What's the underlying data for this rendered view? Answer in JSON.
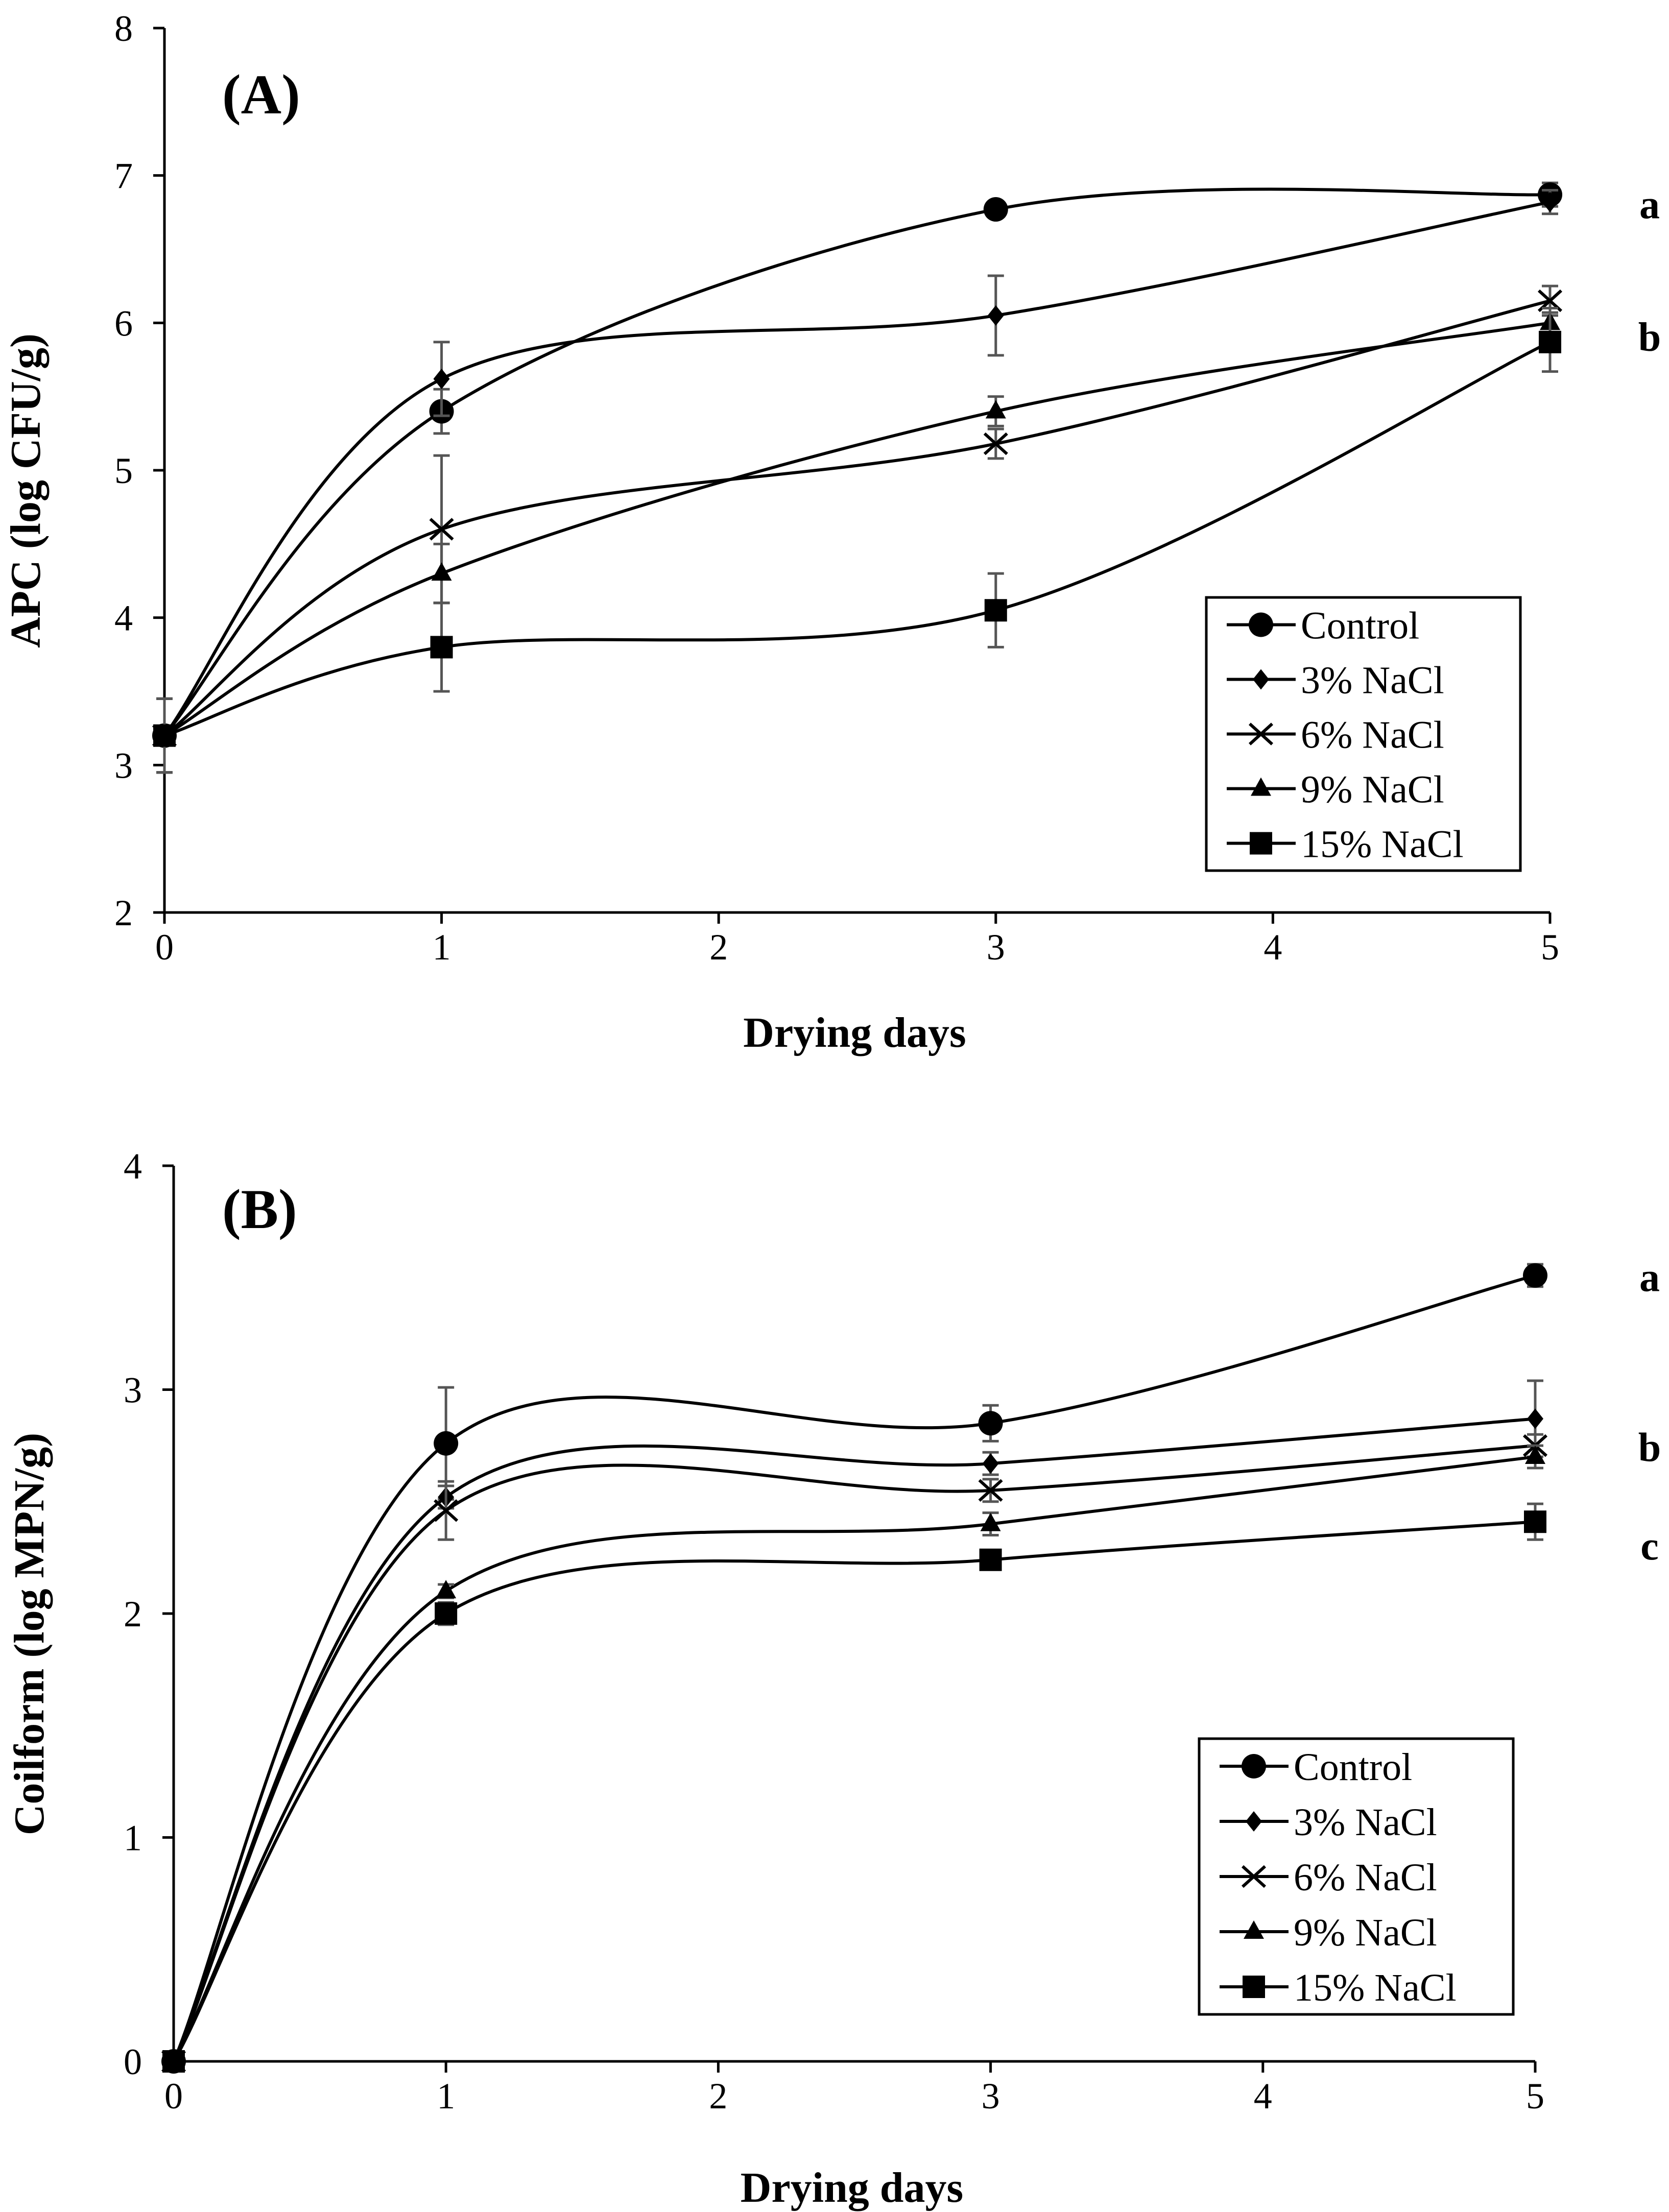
{
  "chart_data": [
    {
      "type": "line",
      "panel_label": "(A)",
      "xlabel": "Drying days",
      "ylabel": "APC (log CFU/g)",
      "xlim": [
        0,
        5
      ],
      "ylim": [
        2,
        8
      ],
      "xticks": [
        "0",
        "1",
        "2",
        "3",
        "4",
        "5"
      ],
      "yticks": [
        "2",
        "3",
        "4",
        "5",
        "6",
        "7",
        "8"
      ],
      "grid": false,
      "legend_position": "lower-right",
      "x": [
        0,
        1,
        3,
        5
      ],
      "series": [
        {
          "name": "Control",
          "marker": "circle",
          "values": [
            3.2,
            5.4,
            6.77,
            6.87
          ],
          "errors": [
            0.25,
            0.15,
            0.05,
            0.08
          ]
        },
        {
          "name": "3% NaCl",
          "marker": "diamond",
          "values": [
            3.2,
            5.62,
            6.05,
            6.82
          ],
          "errors": [
            0.25,
            0.25,
            0.27,
            0.08
          ]
        },
        {
          "name": "6% NaCl",
          "marker": "x",
          "values": [
            3.2,
            4.6,
            5.18,
            6.15
          ],
          "errors": [
            0.25,
            0.5,
            0.1,
            0.1
          ]
        },
        {
          "name": "9% NaCl",
          "marker": "triangle",
          "values": [
            3.2,
            4.3,
            5.4,
            6.0
          ],
          "errors": [
            0.25,
            0.2,
            0.1,
            0.1
          ]
        },
        {
          "name": "15% NaCl",
          "marker": "square",
          "values": [
            3.2,
            3.8,
            4.05,
            5.87
          ],
          "errors": [
            0.25,
            0.3,
            0.25,
            0.2
          ]
        }
      ],
      "significance_labels": [
        {
          "text": "a",
          "y": 6.8
        },
        {
          "text": "b",
          "y": 5.9
        }
      ]
    },
    {
      "type": "line",
      "panel_label": "(B)",
      "xlabel": "Drying days",
      "ylabel": "Coilform (log MPN/g)",
      "xlim": [
        0,
        5
      ],
      "ylim": [
        0,
        4
      ],
      "xticks": [
        "0",
        "1",
        "2",
        "3",
        "4",
        "5"
      ],
      "yticks": [
        "0",
        "1",
        "2",
        "3",
        "4"
      ],
      "grid": false,
      "legend_position": "lower-right",
      "x": [
        0,
        1,
        3,
        5
      ],
      "series": [
        {
          "name": "Control",
          "marker": "circle",
          "values": [
            0,
            2.76,
            2.85,
            3.51
          ],
          "errors": [
            0,
            0.25,
            0.08,
            0.05
          ]
        },
        {
          "name": "3% NaCl",
          "marker": "diamond",
          "values": [
            0,
            2.52,
            2.67,
            2.87
          ],
          "errors": [
            0,
            0.05,
            0.05,
            0.17
          ]
        },
        {
          "name": "6% NaCl",
          "marker": "x",
          "values": [
            0,
            2.46,
            2.55,
            2.75
          ],
          "errors": [
            0,
            0.13,
            0.05,
            0.05
          ]
        },
        {
          "name": "9% NaCl",
          "marker": "triangle",
          "values": [
            0,
            2.1,
            2.4,
            2.7
          ],
          "errors": [
            0,
            0.03,
            0.05,
            0.05
          ]
        },
        {
          "name": "15% NaCl",
          "marker": "square",
          "values": [
            0,
            2.0,
            2.24,
            2.41
          ],
          "errors": [
            0,
            0.05,
            0.03,
            0.08
          ]
        }
      ],
      "significance_labels": [
        {
          "text": "a",
          "y": 3.5
        },
        {
          "text": "b",
          "y": 2.74
        },
        {
          "text": "c",
          "y": 2.3
        }
      ]
    }
  ]
}
